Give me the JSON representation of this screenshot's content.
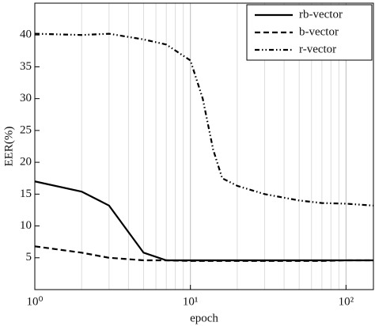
{
  "chart_data": {
    "type": "line",
    "xlabel": "epoch",
    "ylabel": "EER(%)",
    "x": [
      1,
      2,
      3,
      5,
      7,
      10,
      12,
      14,
      16,
      20,
      30,
      50,
      70,
      100,
      150
    ],
    "series": [
      {
        "name": "rb-vector",
        "color": "#000000",
        "style": "solid",
        "values": [
          17,
          15.4,
          13.2,
          5.8,
          4.6,
          4.6,
          4.6,
          4.6,
          4.6,
          4.6,
          4.6,
          4.6,
          4.6,
          4.6,
          4.6
        ]
      },
      {
        "name": "b-vector",
        "color": "#000000",
        "style": "dashed",
        "values": [
          6.8,
          5.8,
          5,
          4.6,
          4.6,
          4.5,
          4.5,
          4.5,
          4.5,
          4.5,
          4.5,
          4.5,
          4.5,
          4.6,
          4.6
        ]
      },
      {
        "name": "r-vector",
        "color": "#000000",
        "style": "dashdotdot",
        "values": [
          40.2,
          40,
          40.2,
          39.3,
          38.5,
          36,
          30,
          22,
          17.5,
          16.3,
          15,
          14,
          13.6,
          13.5,
          13.2
        ]
      }
    ],
    "xscale": "log",
    "xlim": [
      1,
      150
    ],
    "xticks": [
      {
        "value": 1,
        "label": "10⁰"
      },
      {
        "value": 10,
        "label": "10¹"
      },
      {
        "value": 100,
        "label": "10²"
      }
    ],
    "ylim": [
      0,
      45
    ],
    "yticks": [
      5,
      10,
      15,
      20,
      25,
      30,
      35,
      40
    ],
    "minor_grid": true,
    "legend": "upper right"
  }
}
